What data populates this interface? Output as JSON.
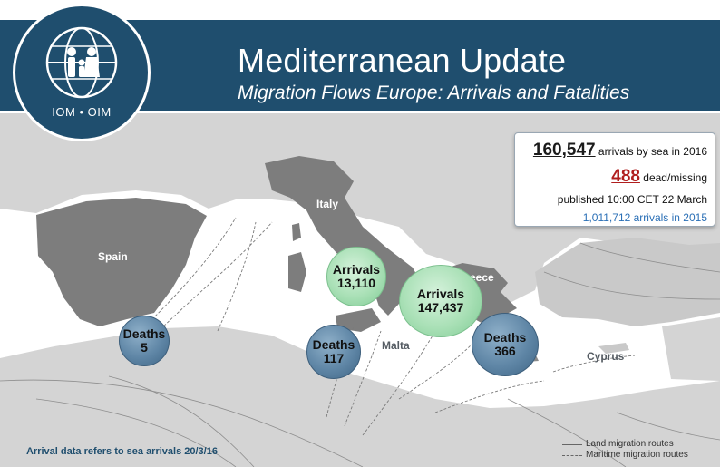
{
  "header": {
    "title": "Mediterranean Update",
    "subtitle": "Migration Flows Europe: Arrivals and Fatalities",
    "band_color": "#1f4e6e"
  },
  "logo": {
    "text": "IOM • OIM",
    "icon": "iom-family-globe-icon"
  },
  "stats": {
    "arrivals_value": "160,547",
    "arrivals_suffix": " arrivals by sea in 2016",
    "dead_value": "488",
    "dead_suffix": " dead/missing",
    "published": "published 10:00 CET 22 March",
    "prev_year": "1,011,712 arrivals in 2015",
    "dead_color": "#b01e1e",
    "prev_color": "#2a6fb6"
  },
  "map": {
    "countries": {
      "spain": "Spain",
      "italy": "Italy",
      "greece": "Greece",
      "malta": "Malta",
      "cyprus": "Cyprus"
    },
    "bubbles": {
      "spain_deaths": {
        "label": "Deaths",
        "value": "5"
      },
      "italy_arrivals": {
        "label": "Arrivals",
        "value": "13,110"
      },
      "italy_deaths": {
        "label": "Deaths",
        "value": "117"
      },
      "greece_arrivals": {
        "label": "Arrivals",
        "value": "147,437"
      },
      "greece_deaths": {
        "label": "Deaths",
        "value": "366"
      }
    }
  },
  "footnote": "Arrival data refers to sea arrivals 20/3/16",
  "legend": {
    "land": "Land migration routes",
    "maritime": "Maritime migration routes"
  }
}
